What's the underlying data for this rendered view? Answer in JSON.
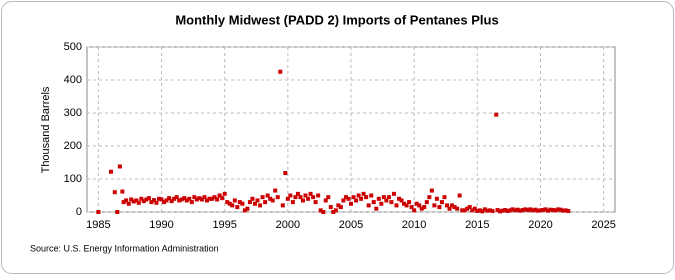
{
  "chart_data": {
    "type": "scatter",
    "title": "Monthly Midwest (PADD 2) Imports of Pentanes Plus",
    "y_label": "Thousand Barrels",
    "source": "Source: U.S. Energy Information Administration",
    "color": "#cc0000",
    "grid": true,
    "xlim": [
      1984.1,
      2025.9
    ],
    "ylim": [
      0,
      500
    ],
    "xticks": [
      1985,
      1990,
      1995,
      2000,
      2005,
      2010,
      2015,
      2020,
      2025
    ],
    "yticks": [
      0,
      100,
      200,
      300,
      400,
      500
    ],
    "x": [
      1985.0,
      1986.0,
      1986.3,
      1986.5,
      1986.7,
      1986.9,
      1987.0,
      1987.2,
      1987.4,
      1987.6,
      1987.8,
      1988.0,
      1988.2,
      1988.4,
      1988.6,
      1988.8,
      1989.0,
      1989.2,
      1989.4,
      1989.6,
      1989.8,
      1990.0,
      1990.2,
      1990.4,
      1990.6,
      1990.8,
      1991.0,
      1991.2,
      1991.4,
      1991.6,
      1991.8,
      1992.0,
      1992.2,
      1992.4,
      1992.6,
      1992.8,
      1993.0,
      1993.2,
      1993.4,
      1993.6,
      1993.8,
      1994.0,
      1994.2,
      1994.4,
      1994.6,
      1994.8,
      1995.0,
      1995.2,
      1995.4,
      1995.6,
      1995.8,
      1996.0,
      1996.2,
      1996.4,
      1996.6,
      1996.8,
      1997.0,
      1997.2,
      1997.4,
      1997.6,
      1997.8,
      1998.0,
      1998.2,
      1998.4,
      1998.6,
      1998.8,
      1999.0,
      1999.2,
      1999.4,
      1999.6,
      1999.8,
      2000.0,
      2000.2,
      2000.4,
      2000.6,
      2000.8,
      2001.0,
      2001.2,
      2001.4,
      2001.6,
      2001.8,
      2002.0,
      2002.2,
      2002.4,
      2002.6,
      2002.8,
      2003.0,
      2003.2,
      2003.4,
      2003.6,
      2003.8,
      2004.0,
      2004.2,
      2004.4,
      2004.6,
      2004.8,
      2005.0,
      2005.2,
      2005.4,
      2005.6,
      2005.8,
      2006.0,
      2006.2,
      2006.4,
      2006.6,
      2006.8,
      2007.0,
      2007.2,
      2007.4,
      2007.6,
      2007.8,
      2008.0,
      2008.2,
      2008.4,
      2008.6,
      2008.8,
      2009.0,
      2009.2,
      2009.4,
      2009.6,
      2009.8,
      2010.0,
      2010.2,
      2010.4,
      2010.6,
      2010.8,
      2011.0,
      2011.2,
      2011.4,
      2011.6,
      2011.8,
      2012.0,
      2012.2,
      2012.4,
      2012.6,
      2012.8,
      2013.0,
      2013.2,
      2013.4,
      2013.6,
      2013.8,
      2014.0,
      2014.2,
      2014.4,
      2014.6,
      2014.8,
      2015.0,
      2015.2,
      2015.4,
      2015.6,
      2015.8,
      2016.0,
      2016.2,
      2016.5,
      2016.6,
      2016.8,
      2017.0,
      2017.2,
      2017.4,
      2017.6,
      2017.8,
      2018.0,
      2018.2,
      2018.4,
      2018.6,
      2018.8,
      2019.0,
      2019.2,
      2019.4,
      2019.6,
      2019.8,
      2020.0,
      2020.2,
      2020.4,
      2020.6,
      2020.8,
      2021.0,
      2021.2,
      2021.4,
      2021.6,
      2021.8,
      2022.0,
      2022.2
    ],
    "values": [
      0,
      122,
      60,
      0,
      138,
      62,
      30,
      35,
      25,
      38,
      32,
      35,
      28,
      40,
      33,
      38,
      42,
      30,
      36,
      28,
      40,
      38,
      30,
      35,
      42,
      33,
      40,
      45,
      35,
      38,
      42,
      35,
      40,
      30,
      45,
      38,
      42,
      38,
      45,
      35,
      40,
      40,
      45,
      38,
      50,
      42,
      55,
      30,
      25,
      20,
      35,
      15,
      30,
      25,
      5,
      10,
      30,
      40,
      25,
      35,
      20,
      45,
      30,
      50,
      40,
      35,
      65,
      45,
      425,
      20,
      118,
      40,
      50,
      30,
      45,
      55,
      45,
      35,
      50,
      40,
      55,
      45,
      30,
      50,
      5,
      0,
      35,
      45,
      15,
      0,
      5,
      20,
      15,
      35,
      45,
      40,
      25,
      45,
      35,
      50,
      40,
      55,
      45,
      20,
      50,
      30,
      10,
      40,
      25,
      45,
      35,
      45,
      30,
      55,
      20,
      40,
      35,
      25,
      20,
      30,
      15,
      5,
      25,
      20,
      10,
      15,
      30,
      45,
      65,
      20,
      40,
      15,
      30,
      45,
      20,
      10,
      20,
      15,
      10,
      50,
      5,
      5,
      10,
      15,
      5,
      10,
      3,
      5,
      2,
      8,
      4,
      5,
      3,
      295,
      6,
      2,
      4,
      6,
      3,
      5,
      8,
      5,
      7,
      4,
      6,
      8,
      6,
      8,
      5,
      7,
      4,
      5,
      6,
      8,
      4,
      7,
      6,
      5,
      8,
      7,
      4,
      5,
      3
    ]
  }
}
